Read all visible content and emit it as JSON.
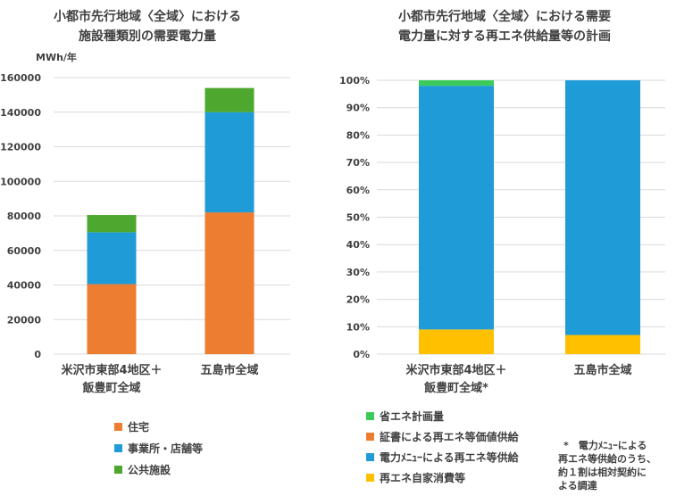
{
  "chart_data": [
    {
      "type": "bar",
      "stacked": true,
      "title_line1": "小都市先行地域〈全域〉における",
      "title_line2": "施設種類別の需要電力量",
      "ylabel": "MWh/年",
      "ylim": [
        0,
        160000
      ],
      "yticks": [
        "0",
        "20000",
        "40000",
        "60000",
        "80000",
        "100000",
        "120000",
        "140000",
        "160000"
      ],
      "categories": [
        {
          "line1": "米沢市東部4地区＋",
          "line2": "飯豊町全域"
        },
        {
          "line1": "五島市全域",
          "line2": ""
        }
      ],
      "series": [
        {
          "name": "住宅",
          "color": "#ED7D31",
          "values": [
            40500,
            82000
          ]
        },
        {
          "name": "事業所・店舗等",
          "color": "#1F9BD7",
          "values": [
            30000,
            58000
          ]
        },
        {
          "name": "公共施設",
          "color": "#4EA72E",
          "values": [
            10000,
            14000
          ]
        }
      ]
    },
    {
      "type": "bar",
      "stacked": true,
      "title_line1": "小都市先行地域〈全域〉における需要",
      "title_line2": "電力量に対する再エネ供給量等の計画",
      "ylim": [
        0,
        100
      ],
      "yticks": [
        "0%",
        "10%",
        "20%",
        "30%",
        "40%",
        "50%",
        "60%",
        "70%",
        "80%",
        "90%",
        "100%"
      ],
      "categories": [
        {
          "line1": "米沢市東部4地区＋",
          "line2": "飯豊町全域*"
        },
        {
          "line1": "五島市全域",
          "line2": ""
        }
      ],
      "series": [
        {
          "name": "再エネ自家消費等",
          "color": "#FFC000",
          "values": [
            9,
            7
          ]
        },
        {
          "name": "電力ﾒﾆｭｰによる再エネ等供給",
          "color": "#1F9BD7",
          "values": [
            89,
            93
          ]
        },
        {
          "name": "証書による再エネ等価値供給",
          "color": "#ED7D31",
          "values": [
            0,
            0
          ]
        },
        {
          "name": "省エネ計画量",
          "color": "#3CCB5A",
          "values": [
            2,
            0
          ]
        }
      ],
      "legend_order": [
        3,
        2,
        1,
        0
      ],
      "note_lines": [
        "*　電力ﾒﾆｭｰによる",
        "再エネ等供給のうち、",
        "約１割は相対契約に",
        "よる調達"
      ]
    }
  ]
}
